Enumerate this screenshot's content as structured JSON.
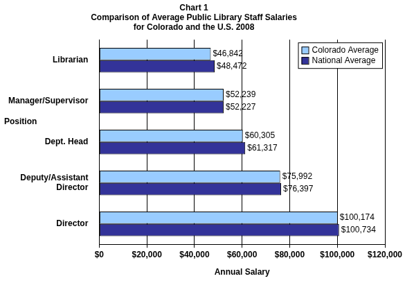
{
  "chart_data": {
    "type": "bar",
    "orientation": "horizontal",
    "title": "Chart 1",
    "subtitle": "Comparison of Average Public Library Staff Salaries for Colorado and the U.S. 2008",
    "categories": [
      "Librarian",
      "Manager/Supervisor",
      "Dept. Head",
      "Deputy/Assistant Director",
      "Director"
    ],
    "series": [
      {
        "name": "Colorado Average",
        "color": "#99ccff",
        "values": [
          46842,
          52239,
          60305,
          75992,
          100174
        ],
        "value_labels": [
          "$46,842",
          "$52,239",
          "$60,305",
          "$75,992",
          "$100,174"
        ]
      },
      {
        "name": "National Average",
        "color": "#333399",
        "values": [
          48472,
          52227,
          61317,
          76397,
          100734
        ],
        "value_labels": [
          "$48,472",
          "$52,227",
          "$61,317",
          "$76,397",
          "$100,734"
        ]
      }
    ],
    "xlim": [
      0,
      120000
    ],
    "xticks": [
      {
        "value": 0,
        "label": "$0"
      },
      {
        "value": 20000,
        "label": "$20,000"
      },
      {
        "value": 40000,
        "label": "$40,000"
      },
      {
        "value": 60000,
        "label": "$60,000"
      },
      {
        "value": 80000,
        "label": "$80,000"
      },
      {
        "value": 100000,
        "label": "$100,000"
      },
      {
        "value": 120000,
        "label": "$120,000"
      }
    ],
    "x_label": "Annual Salary",
    "y_label": "Position",
    "grid": true,
    "legend": "upper right",
    "data_labels": true
  }
}
